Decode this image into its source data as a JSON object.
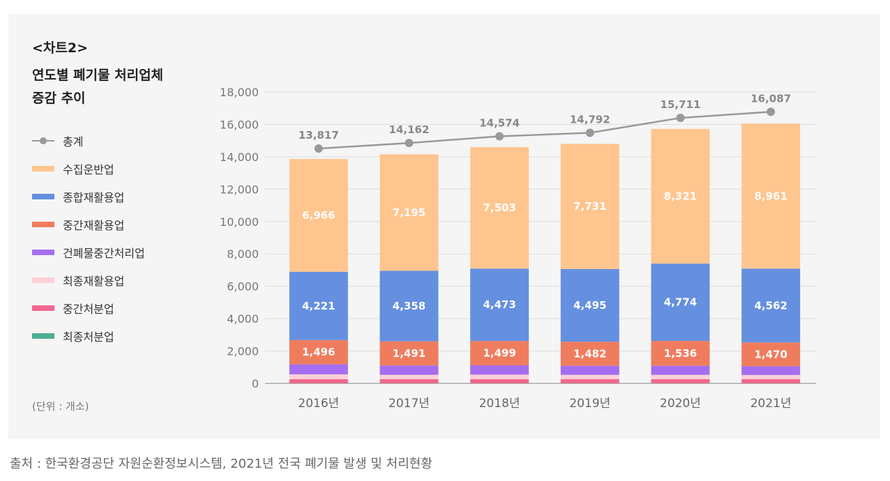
{
  "chart_label": "<차트2>",
  "chart_title_lines": [
    "연도별 폐기물 처리업체",
    "증감 추이"
  ],
  "unit": "(단위 : 개소)",
  "source": "출처 : 한국환경공단 자원순환정보시스템, 2021년 전국 폐기물 발생 및 처리현황",
  "chart_data": {
    "type": "bar",
    "stacked": true,
    "categories": [
      "2016년",
      "2017년",
      "2018년",
      "2019년",
      "2020년",
      "2021년"
    ],
    "ylim": [
      0,
      18000
    ],
    "yticks": [
      0,
      2000,
      4000,
      6000,
      8000,
      10000,
      12000,
      14000,
      16000,
      18000
    ],
    "ytick_labels": [
      "0",
      "2,000",
      "4,000",
      "6,000",
      "8,000",
      "10,000",
      "12,000",
      "14,000",
      "16,000",
      "18,000"
    ],
    "grid": true,
    "total_line": {
      "name": "총계",
      "color": "#999999",
      "values": [
        13817,
        14162,
        14574,
        14792,
        15711,
        16087
      ],
      "labels": [
        "13,817",
        "14,162",
        "14,574",
        "14,792",
        "15,711",
        "16,087"
      ]
    },
    "series": [
      {
        "name": "최종처분업",
        "color": "#4caf93",
        "values": [
          10,
          10,
          10,
          10,
          10,
          10
        ],
        "labels": null
      },
      {
        "name": "중간처분업",
        "color": "#f0678e",
        "values": [
          250,
          250,
          250,
          250,
          250,
          250
        ],
        "labels": null
      },
      {
        "name": "최종재활용업",
        "color": "#ffd0d8",
        "values": [
          300,
          270,
          280,
          270,
          270,
          260
        ],
        "labels": null
      },
      {
        "name": "건폐물중간처리업",
        "color": "#a56ef0",
        "values": [
          620,
          580,
          580,
          560,
          560,
          540
        ],
        "labels": null
      },
      {
        "name": "중간재활용업",
        "color": "#f07c5e",
        "values": [
          1496,
          1491,
          1499,
          1482,
          1536,
          1470
        ],
        "labels": [
          "1,496",
          "1,491",
          "1,499",
          "1,482",
          "1,536",
          "1,470"
        ]
      },
      {
        "name": "종합재활용업",
        "color": "#6590e0",
        "values": [
          4221,
          4358,
          4473,
          4495,
          4774,
          4562
        ],
        "labels": [
          "4,221",
          "4,358",
          "4,473",
          "4,495",
          "4,774",
          "4,562"
        ]
      },
      {
        "name": "수집운반업",
        "color": "#ffc58e",
        "values": [
          6966,
          7195,
          7503,
          7731,
          8321,
          8961
        ],
        "labels": [
          "6,966",
          "7,195",
          "7,503",
          "7,731",
          "8,321",
          "8,961"
        ]
      }
    ]
  },
  "legend": [
    {
      "name": "총계",
      "type": "line",
      "color": "#999999"
    },
    {
      "name": "수집운반업",
      "type": "bar",
      "color": "#ffc58e"
    },
    {
      "name": "종합재활용업",
      "type": "bar",
      "color": "#6590e0"
    },
    {
      "name": "중간재활용업",
      "type": "bar",
      "color": "#f07c5e"
    },
    {
      "name": "건폐물중간처리업",
      "type": "bar",
      "color": "#a56ef0"
    },
    {
      "name": "최종재활용업",
      "type": "bar",
      "color": "#ffd0d8"
    },
    {
      "name": "중간처분업",
      "type": "bar",
      "color": "#f0678e"
    },
    {
      "name": "최종처분업",
      "type": "bar",
      "color": "#4caf93"
    }
  ]
}
